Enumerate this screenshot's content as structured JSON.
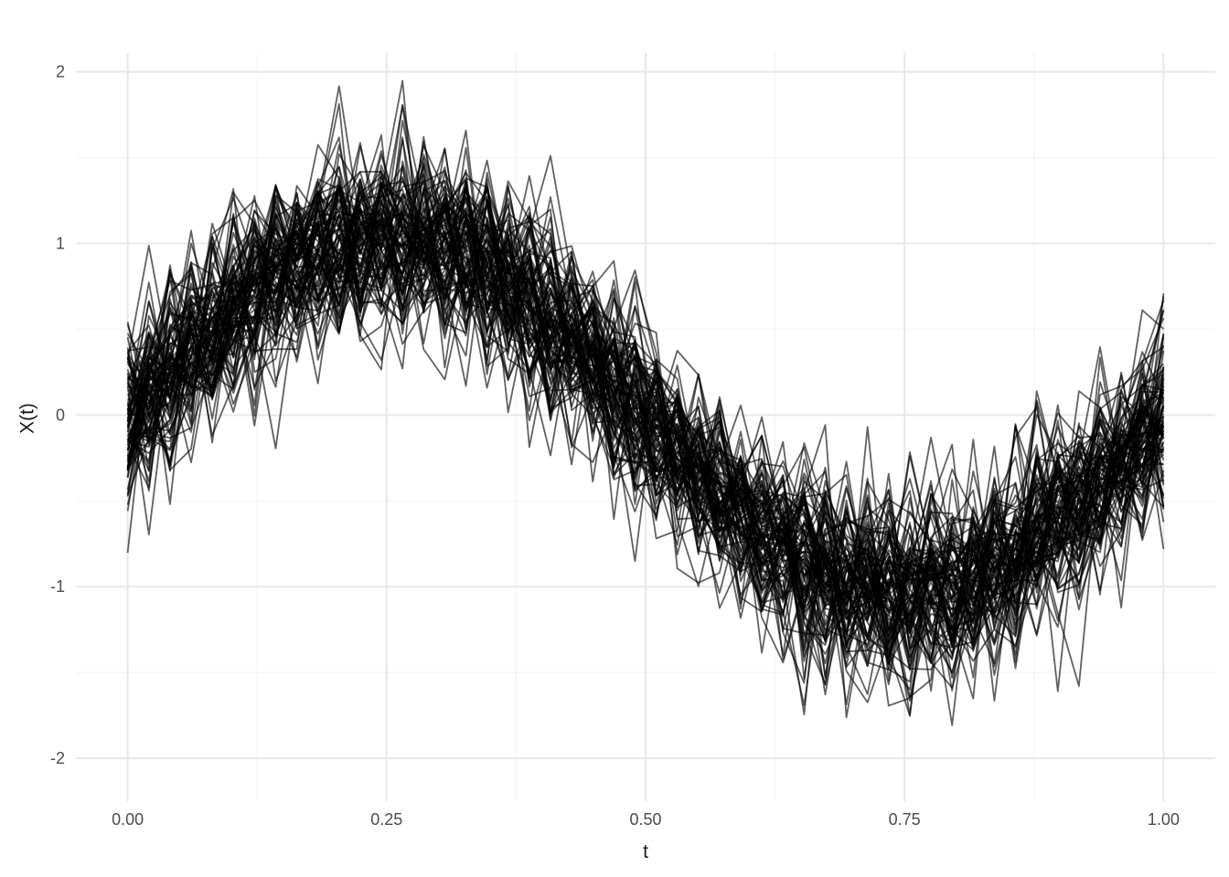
{
  "chart_data": {
    "type": "line",
    "title": "",
    "xlabel": "t",
    "ylabel": "X(t)",
    "x_ticks": [
      0,
      0.25,
      0.5,
      0.75,
      1
    ],
    "x_tick_labels": [
      "0.00",
      "0.25",
      "0.50",
      "0.75",
      "1.00"
    ],
    "x_minor_ticks": [
      0.125,
      0.375,
      0.625,
      0.875
    ],
    "y_ticks": [
      -2,
      -1,
      0,
      1,
      2
    ],
    "y_tick_labels": [
      "-2",
      "-1",
      "0",
      "1",
      "2"
    ],
    "y_minor_ticks": [
      -1.5,
      -0.5,
      0.5,
      1.5
    ],
    "xlim": [
      -0.05,
      1.05
    ],
    "ylim": [
      -2.25,
      2.11
    ],
    "grid": true,
    "legend_position": "none",
    "series_description": "Ensemble of noisy sinusoidal sample paths X(t) = sin(2*pi*t) + gaussian noise, observed at equally spaced points on [0,1]",
    "observed_extremes": {
      "y_max": 1.91,
      "y_min": -2.05
    },
    "generator": {
      "n_curves": 100,
      "n_points": 50,
      "mean_function": "sin(2*pi*t)",
      "amplitude": 1.03,
      "noise_sd": 0.28,
      "seed": 20240613
    },
    "style": {
      "line_color": "#000000",
      "line_alpha": 0.62,
      "line_width": 1.8,
      "grid_major_color": "#e8e8e8",
      "grid_minor_color": "#f2f2f2",
      "grid_major_width": 2,
      "grid_minor_width": 1,
      "tick_label_color": "#4d4d4d",
      "tick_label_size": 18,
      "axis_title_color": "#1a1a1a",
      "background": "#ffffff"
    }
  }
}
